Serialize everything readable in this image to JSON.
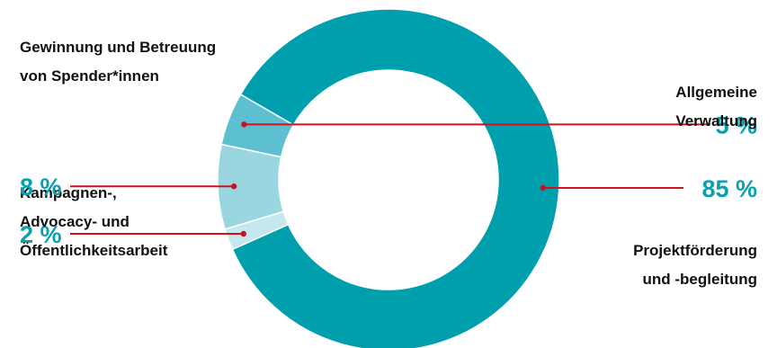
{
  "chart_data": {
    "type": "pie",
    "title": "",
    "slices": [
      {
        "label_lines": [
          "Projektförderung",
          "und -begleitung"
        ],
        "value": 85,
        "value_label": "85 %",
        "color": "#009fae"
      },
      {
        "label_lines": [
          "Kampagnen-,",
          "Advocacy- und",
          "Öffentlichkeitsarbeit"
        ],
        "value": 2,
        "value_label": "2 %",
        "color": "#c4e8ed"
      },
      {
        "label_lines": [
          "Gewinnung und Betreuung",
          "von Spender*innen"
        ],
        "value": 8,
        "value_label": "8 %",
        "color": "#99d6df"
      },
      {
        "label_lines": [
          "Allgemeine",
          "Verwaltung"
        ],
        "value": 5,
        "value_label": "5 %",
        "color": "#5cc0d0"
      }
    ],
    "style": "donut",
    "leader_line_color": "#d0101e",
    "value_text_color": "#0aa0ae",
    "label_text_color": "#111111"
  }
}
